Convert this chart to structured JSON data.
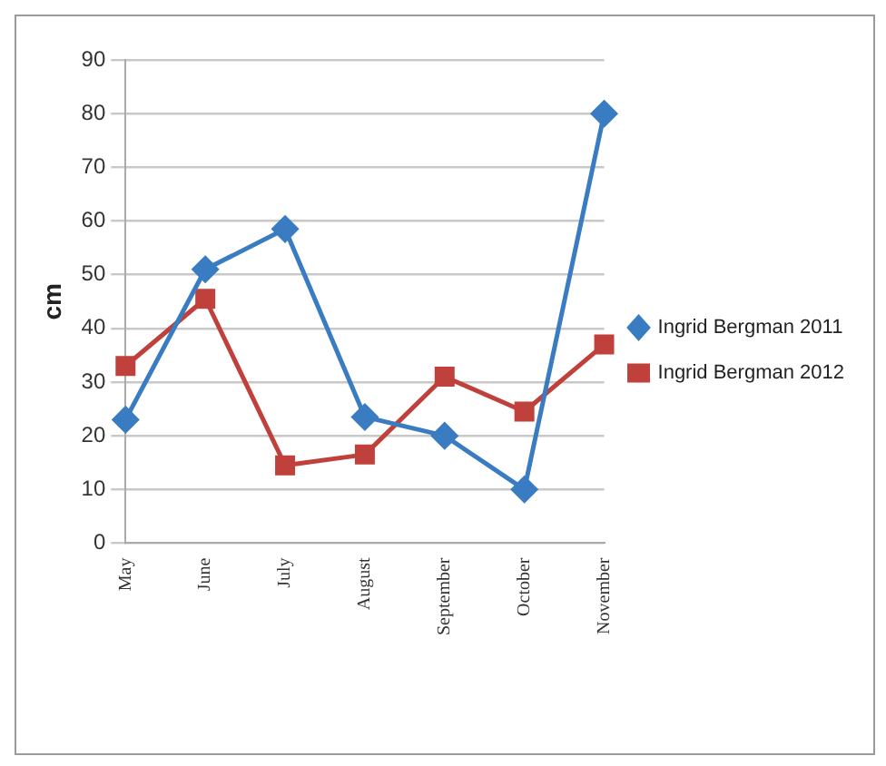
{
  "chart_data": {
    "type": "line",
    "ylabel": "cm",
    "categories": [
      "May",
      "June",
      "July",
      "August",
      "September",
      "October",
      "November"
    ],
    "series": [
      {
        "name": "Ingrid Bergman 2011",
        "color": "#3a7cc2",
        "marker": "diamond",
        "values": [
          23,
          51,
          58.5,
          23.5,
          20,
          10,
          80
        ]
      },
      {
        "name": "Ingrid Bergman 2012",
        "color": "#c0403c",
        "marker": "square",
        "values": [
          33,
          45.5,
          14.5,
          16.5,
          31,
          24.5,
          37
        ]
      }
    ],
    "ylim": [
      0,
      90
    ],
    "yticks": [
      0,
      10,
      20,
      30,
      40,
      50,
      60,
      70,
      80,
      90
    ],
    "grid": "y",
    "legend": "right",
    "line_style": "solid"
  }
}
